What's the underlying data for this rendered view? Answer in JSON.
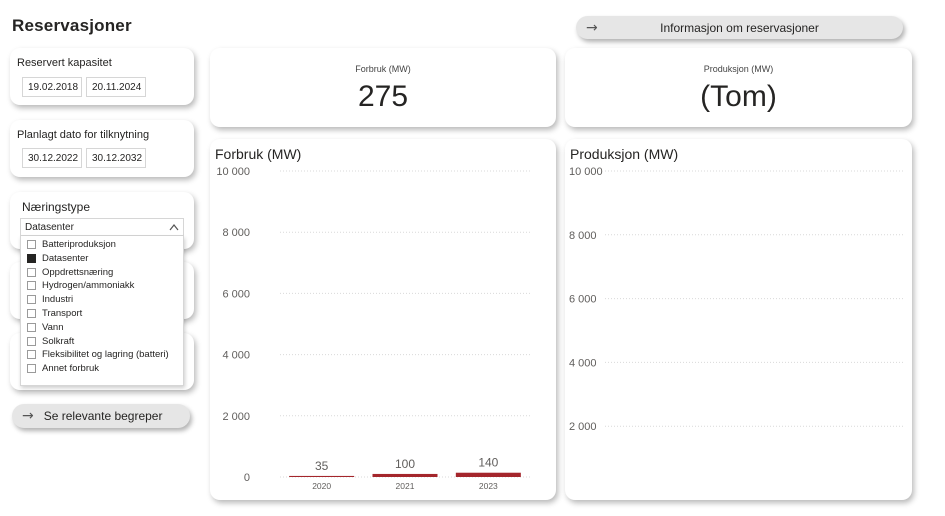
{
  "page_title": "Reservasjoner",
  "buttons": {
    "info": "Informasjon om reservasjoner",
    "terms": "Se relevante begreper"
  },
  "slicers": {
    "reserved_capacity": {
      "label": "Reservert kapasitet",
      "from": "19.02.2018",
      "to": "20.11.2024"
    },
    "planned_connection": {
      "label": "Planlagt dato for tilknytning",
      "from": "30.12.2022",
      "to": "30.12.2032"
    },
    "industry": {
      "label": "Næringstype",
      "selected": "Datasenter",
      "options": [
        {
          "label": "Batteriproduksjon",
          "checked": false
        },
        {
          "label": "Datasenter",
          "checked": true
        },
        {
          "label": "Oppdrettsnæring",
          "checked": false
        },
        {
          "label": "Hydrogen/ammoniakk",
          "checked": false
        },
        {
          "label": "Industri",
          "checked": false
        },
        {
          "label": "Transport",
          "checked": false
        },
        {
          "label": "Vann",
          "checked": false
        },
        {
          "label": "Solkraft",
          "checked": false
        },
        {
          "label": "Fleksibilitet og lagring (batteri)",
          "checked": false
        },
        {
          "label": "Annet forbruk",
          "checked": false
        }
      ]
    }
  },
  "kpis": {
    "consumption": {
      "label": "Forbruk (MW)",
      "value": "275"
    },
    "production": {
      "label": "Produksjon (MW)",
      "value": "(Tom)"
    }
  },
  "chart_data": [
    {
      "type": "bar",
      "title": "Forbruk (MW)",
      "categories": [
        "2020",
        "2021",
        "2023"
      ],
      "values": [
        35,
        100,
        140
      ],
      "data_labels": [
        "35",
        "100",
        "140"
      ],
      "ylim": [
        0,
        10000
      ],
      "yticks": [
        0,
        2000,
        4000,
        6000,
        8000,
        10000
      ],
      "ytick_labels": [
        "0",
        "2 000",
        "4 000",
        "6 000",
        "8 000",
        "10 000"
      ],
      "grid": true,
      "bar_color": "#a4262c"
    },
    {
      "type": "bar",
      "title": "Produksjon (MW)",
      "categories": [],
      "values": [],
      "ylim": [
        0,
        10000
      ],
      "yticks": [
        2000,
        4000,
        6000,
        8000,
        10000
      ],
      "ytick_labels": [
        "2 000",
        "4 000",
        "6 000",
        "8 000",
        "10 000"
      ],
      "grid": true
    }
  ]
}
